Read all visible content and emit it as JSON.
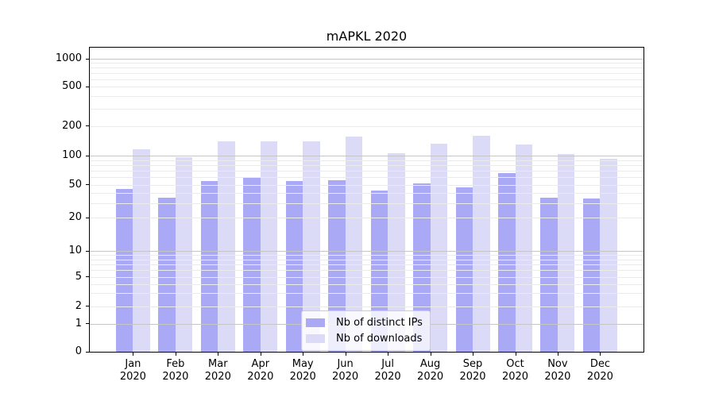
{
  "chart_data": {
    "type": "bar",
    "title": "mAPKL 2020",
    "categories": [
      "Jan 2020",
      "Feb 2020",
      "Mar 2020",
      "Apr 2020",
      "May 2020",
      "Jun 2020",
      "Jul 2020",
      "Aug 2020",
      "Sep 2020",
      "Oct 2020",
      "Nov 2020",
      "Dec 2020"
    ],
    "series": [
      {
        "name": "Nb of distinct IPs",
        "color": "#a9a9f5",
        "values": [
          45,
          35,
          55,
          60,
          55,
          56,
          43,
          52,
          47,
          66,
          35,
          34
        ]
      },
      {
        "name": "Nb of downloads",
        "color": "#dbdbf8",
        "values": [
          117,
          96,
          140,
          140,
          139,
          156,
          106,
          133,
          159,
          131,
          104,
          93
        ]
      }
    ],
    "yscale": "symlog",
    "y_ticks": [
      0,
      1,
      2,
      5,
      10,
      20,
      50,
      100,
      200,
      500,
      1000
    ],
    "ylim": [
      0,
      1400
    ],
    "grid": true,
    "legend_position": "lower center"
  },
  "colors": {
    "background": "#ffffff",
    "major_grid": "#c6c6c6",
    "minor_grid": "#ebebeb",
    "spine": "#000000",
    "text": "#000000",
    "legend_border": "#cccccc",
    "legend_background": "rgba(255,255,255,0.8)"
  }
}
